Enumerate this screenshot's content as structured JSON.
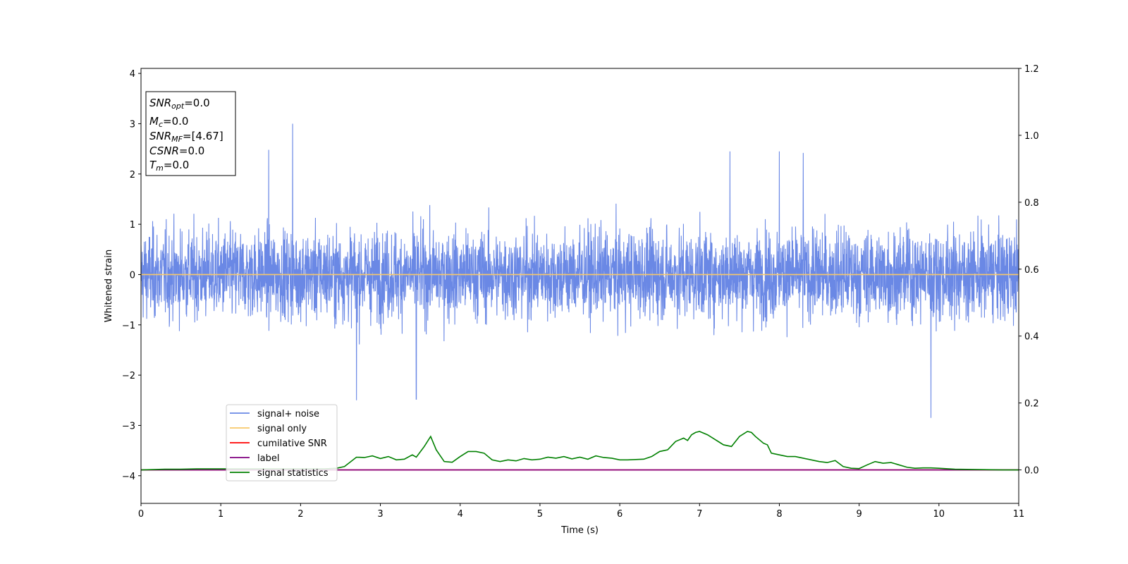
{
  "chart_data": {
    "type": "line",
    "xlabel": "Time (s)",
    "ylabel": "Whitened strain",
    "xlim": [
      0,
      11
    ],
    "ylim": [
      -4.55,
      4.1
    ],
    "y2lim": [
      -0.1,
      1.2
    ],
    "x_ticks": [
      "0",
      "1",
      "2",
      "3",
      "4",
      "5",
      "6",
      "7",
      "8",
      "9",
      "10",
      "11"
    ],
    "y_ticks": [
      "−4",
      "−3",
      "−2",
      "−1",
      "0",
      "1",
      "2",
      "3",
      "4"
    ],
    "y2_ticks": [
      "0.0",
      "0.2",
      "0.4",
      "0.6",
      "0.8",
      "1.0",
      "1.2"
    ],
    "x_tick_values": [
      0,
      1,
      2,
      3,
      4,
      5,
      6,
      7,
      8,
      9,
      10,
      11
    ],
    "y_tick_values": [
      -4,
      -3,
      -2,
      -1,
      0,
      1,
      2,
      3,
      4
    ],
    "y2_tick_values": [
      0,
      0.2,
      0.4,
      0.6,
      0.8,
      1.0,
      1.2
    ],
    "grid": false,
    "legend_position": "lower-left",
    "annotation": {
      "lines": [
        {
          "var": "SNR",
          "sub": "opt",
          "value": "=0.0"
        },
        {
          "var": "M",
          "sub": "c",
          "value": "=0.0"
        },
        {
          "var": "SNR",
          "sub": "MF",
          "value": "=[4.67]"
        },
        {
          "var": "CSNR",
          "sub": "",
          "value": "=0.0"
        },
        {
          "var": "T",
          "sub": "m",
          "value": "=0.0"
        }
      ]
    },
    "series": [
      {
        "name": "signal+ noise",
        "color": "#6a88e5",
        "axis": "left",
        "style": "noise",
        "amplitude_envelope": 1.8,
        "peaks": [
          [
            1.9,
            3.0
          ],
          [
            9.9,
            -2.85
          ],
          [
            2.7,
            -2.5
          ],
          [
            3.45,
            -2.48
          ],
          [
            1.6,
            2.48
          ],
          [
            8.0,
            2.45
          ],
          [
            7.38,
            2.45
          ],
          [
            8.3,
            2.42
          ]
        ]
      },
      {
        "name": "signal only",
        "color": "#f7c86a",
        "axis": "left",
        "x": [
          0,
          11
        ],
        "y": [
          0,
          0
        ]
      },
      {
        "name": "cumilative SNR",
        "color": "#ff0000",
        "axis": "right",
        "x": [
          0,
          11
        ],
        "y": [
          0,
          0
        ]
      },
      {
        "name": "label",
        "color": "#800080",
        "axis": "right",
        "x": [
          0,
          11
        ],
        "y": [
          0,
          0
        ]
      },
      {
        "name": "signal statistics",
        "color": "#008000",
        "axis": "right",
        "x": [
          0,
          0.3,
          0.5,
          0.7,
          0.9,
          1.1,
          1.4,
          1.7,
          2.0,
          2.3,
          2.45,
          2.55,
          2.7,
          2.8,
          2.9,
          3.0,
          3.1,
          3.2,
          3.3,
          3.4,
          3.45,
          3.55,
          3.63,
          3.7,
          3.8,
          3.9,
          4.0,
          4.1,
          4.2,
          4.3,
          4.4,
          4.5,
          4.6,
          4.7,
          4.8,
          4.9,
          5.0,
          5.1,
          5.2,
          5.3,
          5.4,
          5.5,
          5.6,
          5.7,
          5.8,
          5.9,
          6.0,
          6.1,
          6.2,
          6.3,
          6.4,
          6.5,
          6.6,
          6.7,
          6.75,
          6.8,
          6.85,
          6.9,
          6.95,
          7.0,
          7.1,
          7.2,
          7.3,
          7.4,
          7.5,
          7.6,
          7.65,
          7.7,
          7.8,
          7.85,
          7.9,
          8.0,
          8.1,
          8.2,
          8.3,
          8.4,
          8.5,
          8.6,
          8.7,
          8.8,
          8.9,
          9.0,
          9.1,
          9.2,
          9.3,
          9.4,
          9.5,
          9.6,
          9.7,
          9.8,
          9.9,
          10.0,
          10.2,
          10.5,
          10.8,
          11.0
        ],
        "y": [
          0.0,
          0.002,
          0.002,
          0.003,
          0.003,
          0.003,
          0.003,
          0.003,
          0.003,
          0.003,
          0.005,
          0.01,
          0.038,
          0.037,
          0.042,
          0.034,
          0.04,
          0.03,
          0.032,
          0.045,
          0.038,
          0.07,
          0.1,
          0.06,
          0.025,
          0.023,
          0.04,
          0.055,
          0.055,
          0.05,
          0.03,
          0.025,
          0.03,
          0.027,
          0.034,
          0.03,
          0.032,
          0.038,
          0.035,
          0.04,
          0.033,
          0.038,
          0.032,
          0.042,
          0.037,
          0.035,
          0.03,
          0.03,
          0.031,
          0.032,
          0.04,
          0.055,
          0.06,
          0.085,
          0.09,
          0.095,
          0.088,
          0.105,
          0.112,
          0.115,
          0.105,
          0.09,
          0.075,
          0.07,
          0.1,
          0.115,
          0.112,
          0.1,
          0.08,
          0.075,
          0.05,
          0.045,
          0.04,
          0.04,
          0.035,
          0.03,
          0.025,
          0.022,
          0.028,
          0.01,
          0.005,
          0.004,
          0.015,
          0.025,
          0.02,
          0.022,
          0.015,
          0.008,
          0.005,
          0.006,
          0.006,
          0.005,
          0.002,
          0.001,
          0.0,
          0.0
        ]
      }
    ]
  }
}
